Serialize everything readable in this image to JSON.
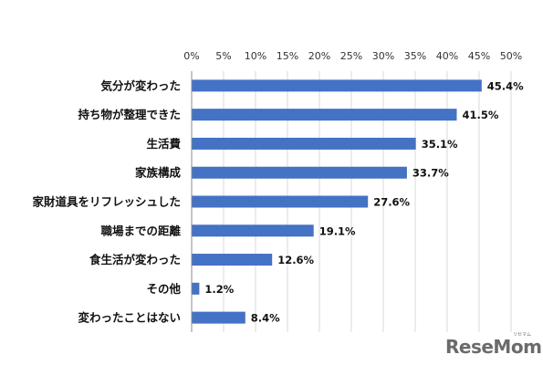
{
  "chart_data": {
    "type": "bar",
    "orientation": "horizontal",
    "categories": [
      "気分が変わった",
      "持ち物が整理できた",
      "生活費",
      "家族構成",
      "家財道具をリフレッシュした",
      "職場までの距離",
      "食生活が変わった",
      "その他",
      "変わったことはない"
    ],
    "values": [
      45.4,
      41.5,
      35.1,
      33.7,
      27.6,
      19.1,
      12.6,
      1.2,
      8.4
    ],
    "data_labels": [
      "45.4%",
      "41.5%",
      "35.1%",
      "33.7%",
      "27.6%",
      "19.1%",
      "12.6%",
      "1.2%",
      "8.4%"
    ],
    "ticks": [
      "0%",
      "5%",
      "10%",
      "15%",
      "20%",
      "25%",
      "30%",
      "35%",
      "40%",
      "45%",
      "50%"
    ],
    "tick_values": [
      0,
      5,
      10,
      15,
      20,
      25,
      30,
      35,
      40,
      45,
      50
    ],
    "xlim": [
      0,
      50
    ],
    "x_axis_position": "top",
    "grid": true,
    "bar_color": "#4472c4",
    "grid_color": "#d9d9d9",
    "title": "",
    "xlabel": "",
    "ylabel": ""
  },
  "watermark": {
    "text": "ReseMom",
    "sub": "リセマム"
  }
}
